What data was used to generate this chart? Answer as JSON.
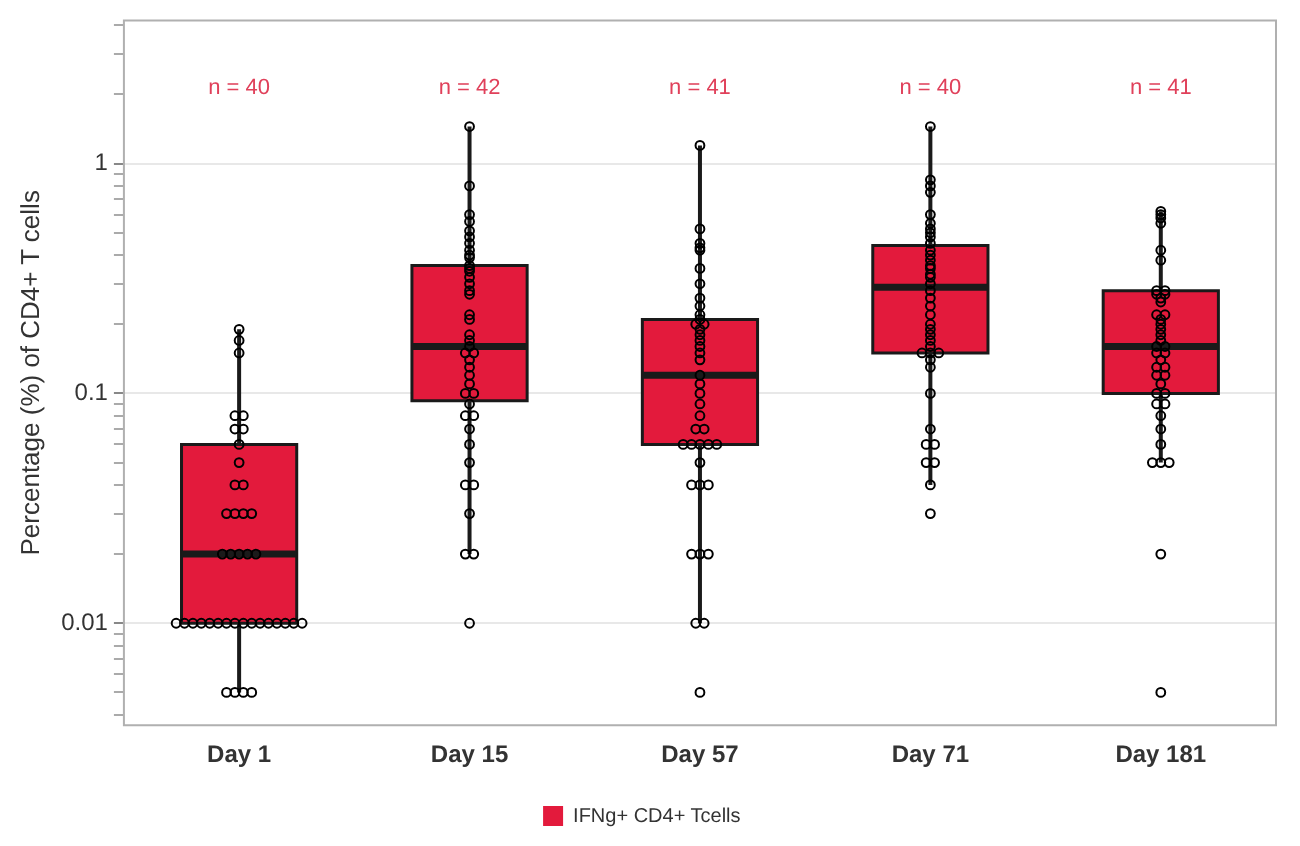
{
  "chart_data": {
    "type": "box",
    "categories": [
      "Day 1",
      "Day 15",
      "Day 57",
      "Day 71",
      "Day 181"
    ],
    "ylabel": "Percentage (%) of CD4+ T cells",
    "legend": "bottom",
    "log": true,
    "grid": "y",
    "marker": "circle",
    "ylim": [
      0.0036,
      4.2
    ],
    "yticks": [
      {
        "value": 0.004,
        "label": null
      },
      {
        "value": 0.005,
        "label": null
      },
      {
        "value": 0.006,
        "label": null
      },
      {
        "value": 0.007,
        "label": null
      },
      {
        "value": 0.008,
        "label": null
      },
      {
        "value": 0.009,
        "label": null
      },
      0.01,
      {
        "value": 0.02,
        "label": null
      },
      {
        "value": 0.03,
        "label": null
      },
      {
        "value": 0.04,
        "label": null
      },
      {
        "value": 0.05,
        "label": null
      },
      {
        "value": 0.06,
        "label": null
      },
      {
        "value": 0.07,
        "label": null
      },
      {
        "value": 0.08,
        "label": null
      },
      {
        "value": 0.09,
        "label": null
      },
      0.1,
      {
        "value": 0.2,
        "label": null
      },
      {
        "value": 0.3,
        "label": null
      },
      {
        "value": 0.4,
        "label": null
      },
      {
        "value": 0.5,
        "label": null
      },
      {
        "value": 0.6,
        "label": null
      },
      {
        "value": 0.7,
        "label": null
      },
      {
        "value": 0.8,
        "label": null
      },
      {
        "value": 0.9,
        "label": null
      },
      1,
      {
        "value": 2,
        "label": null
      },
      {
        "value": 3,
        "label": null
      },
      {
        "value": 4,
        "label": null
      }
    ],
    "series": [
      {
        "name": "IFNg+ CD4+ Tcells",
        "color": "#e31a3c",
        "boxes": [
          {
            "low": 0.005,
            "q1": 0.01,
            "median": 0.02,
            "q3": 0.06,
            "high": 0.19
          },
          {
            "low": 0.02,
            "q1": 0.093,
            "median": 0.16,
            "q3": 0.36,
            "high": 1.45
          },
          {
            "low": 0.01,
            "q1": 0.06,
            "median": 0.12,
            "q3": 0.21,
            "high": 1.2
          },
          {
            "low": 0.04,
            "q1": 0.15,
            "median": 0.29,
            "q3": 0.44,
            "high": 1.45
          },
          {
            "low": 0.05,
            "q1": 0.1,
            "median": 0.16,
            "q3": 0.28,
            "high": 0.62
          }
        ]
      },
      {
        "type": "scatter",
        "color": "#000000",
        "x": [
          "Day 1",
          "Day 1",
          "Day 1",
          "Day 1",
          "Day 1",
          "Day 1",
          "Day 1",
          "Day 1",
          "Day 1",
          "Day 1",
          "Day 1",
          "Day 1",
          "Day 1",
          "Day 1",
          "Day 1",
          "Day 1",
          "Day 1",
          "Day 1",
          "Day 1",
          "Day 1",
          "Day 1",
          "Day 1",
          "Day 1",
          "Day 1",
          "Day 1",
          "Day 1",
          "Day 1",
          "Day 1",
          "Day 1",
          "Day 1",
          "Day 1",
          "Day 1",
          "Day 1",
          "Day 1",
          "Day 1",
          "Day 1",
          "Day 1",
          "Day 1",
          "Day 1",
          "Day 1",
          "Day 15",
          "Day 15",
          "Day 15",
          "Day 15",
          "Day 15",
          "Day 15",
          "Day 15",
          "Day 15",
          "Day 15",
          "Day 15",
          "Day 15",
          "Day 15",
          "Day 15",
          "Day 15",
          "Day 15",
          "Day 15",
          "Day 15",
          "Day 15",
          "Day 15",
          "Day 15",
          "Day 15",
          "Day 15",
          "Day 15",
          "Day 15",
          "Day 15",
          "Day 15",
          "Day 15",
          "Day 15",
          "Day 15",
          "Day 15",
          "Day 15",
          "Day 15",
          "Day 15",
          "Day 15",
          "Day 15",
          "Day 15",
          "Day 15",
          "Day 15",
          "Day 15",
          "Day 15",
          "Day 15",
          "Day 15",
          "Day 57",
          "Day 57",
          "Day 57",
          "Day 57",
          "Day 57",
          "Day 57",
          "Day 57",
          "Day 57",
          "Day 57",
          "Day 57",
          "Day 57",
          "Day 57",
          "Day 57",
          "Day 57",
          "Day 57",
          "Day 57",
          "Day 57",
          "Day 57",
          "Day 57",
          "Day 57",
          "Day 57",
          "Day 57",
          "Day 57",
          "Day 57",
          "Day 57",
          "Day 57",
          "Day 57",
          "Day 57",
          "Day 57",
          "Day 57",
          "Day 57",
          "Day 57",
          "Day 57",
          "Day 57",
          "Day 57",
          "Day 57",
          "Day 57",
          "Day 57",
          "Day 57",
          "Day 57",
          "Day 57",
          "Day 71",
          "Day 71",
          "Day 71",
          "Day 71",
          "Day 71",
          "Day 71",
          "Day 71",
          "Day 71",
          "Day 71",
          "Day 71",
          "Day 71",
          "Day 71",
          "Day 71",
          "Day 71",
          "Day 71",
          "Day 71",
          "Day 71",
          "Day 71",
          "Day 71",
          "Day 71",
          "Day 71",
          "Day 71",
          "Day 71",
          "Day 71",
          "Day 71",
          "Day 71",
          "Day 71",
          "Day 71",
          "Day 71",
          "Day 71",
          "Day 71",
          "Day 71",
          "Day 71",
          "Day 71",
          "Day 71",
          "Day 71",
          "Day 71",
          "Day 71",
          "Day 71",
          "Day 71",
          "Day 181",
          "Day 181",
          "Day 181",
          "Day 181",
          "Day 181",
          "Day 181",
          "Day 181",
          "Day 181",
          "Day 181",
          "Day 181",
          "Day 181",
          "Day 181",
          "Day 181",
          "Day 181",
          "Day 181",
          "Day 181",
          "Day 181",
          "Day 181",
          "Day 181",
          "Day 181",
          "Day 181",
          "Day 181",
          "Day 181",
          "Day 181",
          "Day 181",
          "Day 181",
          "Day 181",
          "Day 181",
          "Day 181",
          "Day 181",
          "Day 181",
          "Day 181",
          "Day 181",
          "Day 181",
          "Day 181",
          "Day 181",
          "Day 181",
          "Day 181",
          "Day 181",
          "Day 181",
          "Day 181"
        ],
        "values": [
          0.19,
          0.17,
          0.15,
          0.08,
          0.08,
          0.07,
          0.07,
          0.06,
          0.05,
          0.04,
          0.04,
          0.03,
          0.03,
          0.03,
          0.03,
          0.02,
          0.02,
          0.02,
          0.02,
          0.02,
          0.01,
          0.01,
          0.01,
          0.01,
          0.01,
          0.01,
          0.01,
          0.01,
          0.01,
          0.01,
          0.01,
          0.01,
          0.01,
          0.01,
          0.01,
          0.01,
          0.005,
          0.005,
          0.005,
          0.005,
          1.45,
          0.8,
          0.6,
          0.56,
          0.51,
          0.48,
          0.45,
          0.42,
          0.4,
          0.39,
          0.36,
          0.35,
          0.34,
          0.32,
          0.3,
          0.28,
          0.27,
          0.22,
          0.21,
          0.17,
          0.16,
          0.15,
          0.15,
          0.14,
          0.13,
          0.12,
          0.11,
          0.1,
          0.1,
          0.09,
          0.08,
          0.08,
          0.07,
          0.06,
          0.05,
          0.04,
          0.04,
          0.03,
          0.02,
          0.02,
          0.01,
          0.18,
          1.2,
          0.52,
          0.45,
          0.43,
          0.42,
          0.35,
          0.3,
          0.26,
          0.24,
          0.22,
          0.21,
          0.2,
          0.2,
          0.19,
          0.18,
          0.17,
          0.16,
          0.15,
          0.14,
          0.12,
          0.11,
          0.1,
          0.09,
          0.08,
          0.07,
          0.07,
          0.06,
          0.06,
          0.06,
          0.06,
          0.06,
          0.05,
          0.04,
          0.04,
          0.04,
          0.02,
          0.02,
          0.02,
          0.01,
          0.01,
          0.005,
          1.45,
          0.85,
          0.8,
          0.75,
          0.6,
          0.55,
          0.52,
          0.5,
          0.48,
          0.45,
          0.42,
          0.4,
          0.38,
          0.36,
          0.35,
          0.33,
          0.32,
          0.3,
          0.28,
          0.26,
          0.24,
          0.22,
          0.2,
          0.19,
          0.18,
          0.17,
          0.16,
          0.15,
          0.15,
          0.15,
          0.14,
          0.13,
          0.1,
          0.07,
          0.06,
          0.06,
          0.05,
          0.05,
          0.04,
          0.03,
          0.62,
          0.6,
          0.58,
          0.55,
          0.42,
          0.38,
          0.28,
          0.28,
          0.27,
          0.27,
          0.26,
          0.25,
          0.22,
          0.22,
          0.21,
          0.2,
          0.19,
          0.18,
          0.17,
          0.16,
          0.16,
          0.15,
          0.15,
          0.14,
          0.13,
          0.13,
          0.12,
          0.12,
          0.11,
          0.1,
          0.1,
          0.09,
          0.09,
          0.08,
          0.07,
          0.06,
          0.05,
          0.05,
          0.05,
          0.02,
          0.005
        ]
      }
    ],
    "annotations": [
      "n = 40",
      "n = 42",
      "n = 41",
      "n = 40",
      "n = 41"
    ]
  }
}
